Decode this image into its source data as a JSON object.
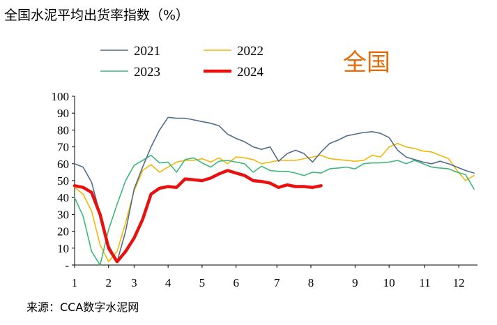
{
  "chart_data": {
    "type": "line",
    "title": "全国水泥平均出货率指数（%）",
    "annotation": "全国",
    "source": "来源：CCA数字水泥网",
    "xlabel": "",
    "ylabel": "",
    "ylim": [
      0,
      100
    ],
    "xlim": [
      1,
      12.85
    ],
    "y_ticks": [
      {
        "v": 0,
        "label": "-"
      },
      {
        "v": 10,
        "label": "10"
      },
      {
        "v": 20,
        "label": "20"
      },
      {
        "v": 30,
        "label": "30"
      },
      {
        "v": 40,
        "label": "40"
      },
      {
        "v": 50,
        "label": "50"
      },
      {
        "v": 60,
        "label": "60"
      },
      {
        "v": 70,
        "label": "70"
      },
      {
        "v": 80,
        "label": "80"
      },
      {
        "v": 90,
        "label": "90"
      },
      {
        "v": 100,
        "label": "100"
      }
    ],
    "x_ticks": [
      {
        "v": 1,
        "label": "1"
      },
      {
        "v": 2,
        "label": "2"
      },
      {
        "v": 2.75,
        "label": "3"
      },
      {
        "v": 3.75,
        "label": "4"
      },
      {
        "v": 4.75,
        "label": "5"
      },
      {
        "v": 5.75,
        "label": "6"
      },
      {
        "v": 6.95,
        "label": "7"
      },
      {
        "v": 7.95,
        "label": "8"
      },
      {
        "v": 9.25,
        "label": "9"
      },
      {
        "v": 10.25,
        "label": "10"
      },
      {
        "v": 11.3,
        "label": "11"
      },
      {
        "v": 12.3,
        "label": "12"
      }
    ],
    "grid": false,
    "legend_position": "top-left",
    "series": [
      {
        "name": "2021",
        "color": "#4F6B8F",
        "width": 1.6,
        "points": [
          [
            1.0,
            60
          ],
          [
            1.25,
            58
          ],
          [
            1.5,
            49
          ],
          [
            1.75,
            30
          ],
          [
            2.0,
            12
          ],
          [
            2.25,
            2
          ],
          [
            2.5,
            20
          ],
          [
            2.75,
            45
          ],
          [
            3.0,
            58
          ],
          [
            3.25,
            70
          ],
          [
            3.5,
            80
          ],
          [
            3.75,
            87.5
          ],
          [
            4.0,
            87
          ],
          [
            4.25,
            87
          ],
          [
            4.5,
            86
          ],
          [
            4.75,
            85
          ],
          [
            5.0,
            84
          ],
          [
            5.25,
            82.5
          ],
          [
            5.5,
            77.5
          ],
          [
            5.75,
            75
          ],
          [
            6.0,
            73
          ],
          [
            6.25,
            70
          ],
          [
            6.5,
            68.5
          ],
          [
            6.75,
            70
          ],
          [
            7.0,
            61.5
          ],
          [
            7.25,
            66
          ],
          [
            7.5,
            68
          ],
          [
            7.75,
            66
          ],
          [
            8.0,
            61
          ],
          [
            8.25,
            67
          ],
          [
            8.5,
            72
          ],
          [
            8.75,
            74
          ],
          [
            9.0,
            76.5
          ],
          [
            9.25,
            77.5
          ],
          [
            9.5,
            78.5
          ],
          [
            9.75,
            79
          ],
          [
            10.0,
            78
          ],
          [
            10.25,
            75.5
          ],
          [
            10.5,
            68
          ],
          [
            10.75,
            64
          ],
          [
            11.0,
            62.5
          ],
          [
            11.25,
            61
          ],
          [
            11.5,
            60
          ],
          [
            11.75,
            61.5
          ],
          [
            12.0,
            60
          ],
          [
            12.25,
            58
          ],
          [
            12.5,
            56
          ],
          [
            12.75,
            54.5
          ],
          [
            12.95,
            51
          ]
        ]
      },
      {
        "name": "2022",
        "color": "#F2B705",
        "width": 1.6,
        "points": [
          [
            1.0,
            46
          ],
          [
            1.25,
            42
          ],
          [
            1.5,
            32
          ],
          [
            1.75,
            12
          ],
          [
            2.0,
            2
          ],
          [
            2.25,
            8
          ],
          [
            2.5,
            25
          ],
          [
            2.75,
            44
          ],
          [
            3.0,
            56
          ],
          [
            3.25,
            59.5
          ],
          [
            3.5,
            55
          ],
          [
            3.75,
            58
          ],
          [
            4.0,
            61
          ],
          [
            4.25,
            62
          ],
          [
            4.5,
            62
          ],
          [
            4.75,
            63
          ],
          [
            5.0,
            61
          ],
          [
            5.25,
            63.5
          ],
          [
            5.5,
            60
          ],
          [
            5.75,
            64
          ],
          [
            6.0,
            63.5
          ],
          [
            6.25,
            62.5
          ],
          [
            6.5,
            60
          ],
          [
            6.75,
            61
          ],
          [
            7.0,
            62
          ],
          [
            7.25,
            62
          ],
          [
            7.5,
            62
          ],
          [
            7.75,
            63
          ],
          [
            8.0,
            64
          ],
          [
            8.25,
            65
          ],
          [
            8.5,
            63
          ],
          [
            8.75,
            62.5
          ],
          [
            9.0,
            62
          ],
          [
            9.25,
            61.5
          ],
          [
            9.5,
            62
          ],
          [
            9.75,
            65
          ],
          [
            10.0,
            64
          ],
          [
            10.25,
            70
          ],
          [
            10.5,
            72
          ],
          [
            10.75,
            70
          ],
          [
            11.0,
            69
          ],
          [
            11.25,
            67.5
          ],
          [
            11.5,
            67
          ],
          [
            11.75,
            65
          ],
          [
            12.0,
            63
          ],
          [
            12.25,
            56
          ],
          [
            12.5,
            50
          ],
          [
            12.75,
            53
          ],
          [
            13.0,
            54
          ],
          [
            13.25,
            48.5
          ]
        ]
      },
      {
        "name": "2023",
        "color": "#3CB878",
        "width": 1.6,
        "points": [
          [
            1.0,
            40
          ],
          [
            1.25,
            29
          ],
          [
            1.5,
            8
          ],
          [
            1.75,
            0
          ],
          [
            2.0,
            21
          ],
          [
            2.25,
            36
          ],
          [
            2.5,
            50
          ],
          [
            2.75,
            59
          ],
          [
            3.0,
            62
          ],
          [
            3.25,
            65
          ],
          [
            3.5,
            60.5
          ],
          [
            3.75,
            61
          ],
          [
            4.0,
            55
          ],
          [
            4.25,
            62.5
          ],
          [
            4.5,
            63.5
          ],
          [
            4.75,
            60.5
          ],
          [
            5.0,
            58
          ],
          [
            5.25,
            61.5
          ],
          [
            5.5,
            62
          ],
          [
            5.75,
            61
          ],
          [
            6.0,
            60
          ],
          [
            6.25,
            55
          ],
          [
            6.5,
            58.5
          ],
          [
            6.75,
            56
          ],
          [
            7.0,
            55.5
          ],
          [
            7.25,
            55.5
          ],
          [
            7.5,
            54.5
          ],
          [
            7.75,
            53
          ],
          [
            8.0,
            55
          ],
          [
            8.25,
            54.5
          ],
          [
            8.5,
            57
          ],
          [
            8.75,
            57.5
          ],
          [
            9.0,
            58
          ],
          [
            9.25,
            57
          ],
          [
            9.5,
            60
          ],
          [
            9.75,
            60.5
          ],
          [
            10.0,
            60.5
          ],
          [
            10.25,
            61
          ],
          [
            10.5,
            62
          ],
          [
            10.75,
            60
          ],
          [
            11.0,
            62
          ],
          [
            11.25,
            60
          ],
          [
            11.5,
            58
          ],
          [
            11.75,
            57.5
          ],
          [
            12.0,
            57
          ],
          [
            12.25,
            55
          ],
          [
            12.5,
            53.5
          ],
          [
            12.75,
            45
          ],
          [
            13.0,
            38.5
          ]
        ]
      },
      {
        "name": "2024",
        "color": "#E8110F",
        "width": 4.5,
        "points": [
          [
            1.0,
            47
          ],
          [
            1.25,
            46
          ],
          [
            1.5,
            43
          ],
          [
            1.75,
            30
          ],
          [
            2.0,
            10
          ],
          [
            2.25,
            2
          ],
          [
            2.5,
            8
          ],
          [
            2.75,
            16
          ],
          [
            3.0,
            27
          ],
          [
            3.25,
            42
          ],
          [
            3.5,
            45.5
          ],
          [
            3.75,
            46.5
          ],
          [
            4.0,
            46
          ],
          [
            4.25,
            51
          ],
          [
            4.5,
            50.5
          ],
          [
            4.75,
            50
          ],
          [
            5.0,
            51.5
          ],
          [
            5.25,
            54
          ],
          [
            5.5,
            56
          ],
          [
            5.75,
            54.5
          ],
          [
            6.0,
            53
          ],
          [
            6.25,
            50
          ],
          [
            6.5,
            49.5
          ],
          [
            6.75,
            48.5
          ],
          [
            7.0,
            46
          ],
          [
            7.25,
            47.5
          ],
          [
            7.5,
            46.5
          ],
          [
            7.75,
            46.5
          ],
          [
            8.0,
            46
          ],
          [
            8.25,
            47
          ]
        ]
      }
    ]
  }
}
